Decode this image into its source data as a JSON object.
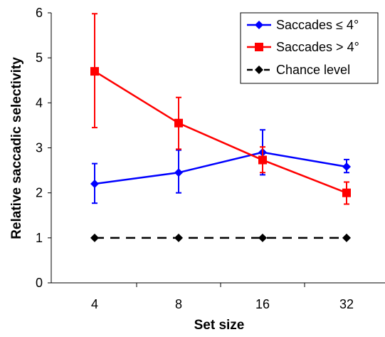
{
  "chart_data": {
    "type": "line",
    "title": "",
    "xlabel": "Set size",
    "ylabel": "Relative saccadic selectivity",
    "categories": [
      "4",
      "8",
      "16",
      "32"
    ],
    "ylim": [
      0,
      6
    ],
    "yticks": [
      "0",
      "1",
      "2",
      "3",
      "4",
      "5",
      "6"
    ],
    "grid": false,
    "legend_position": "top-right",
    "series": [
      {
        "name": "Saccades ≤ 4°",
        "color": "#0000ff",
        "marker": "diamond",
        "line_style": "solid",
        "values": [
          2.2,
          2.45,
          2.9,
          2.58
        ],
        "error_low": [
          1.77,
          2.0,
          2.4,
          2.45
        ],
        "error_high": [
          2.65,
          2.95,
          3.4,
          2.74
        ]
      },
      {
        "name": "Saccades > 4°",
        "color": "#ff0000",
        "marker": "square",
        "line_style": "solid",
        "values": [
          4.7,
          3.55,
          2.73,
          2.0
        ],
        "error_low": [
          3.45,
          2.97,
          2.45,
          1.75
        ],
        "error_high": [
          5.98,
          4.12,
          3.02,
          2.24
        ]
      },
      {
        "name": "Chance level",
        "color": "#000000",
        "marker": "diamond",
        "line_style": "dashed",
        "values": [
          1,
          1,
          1,
          1
        ]
      }
    ]
  }
}
